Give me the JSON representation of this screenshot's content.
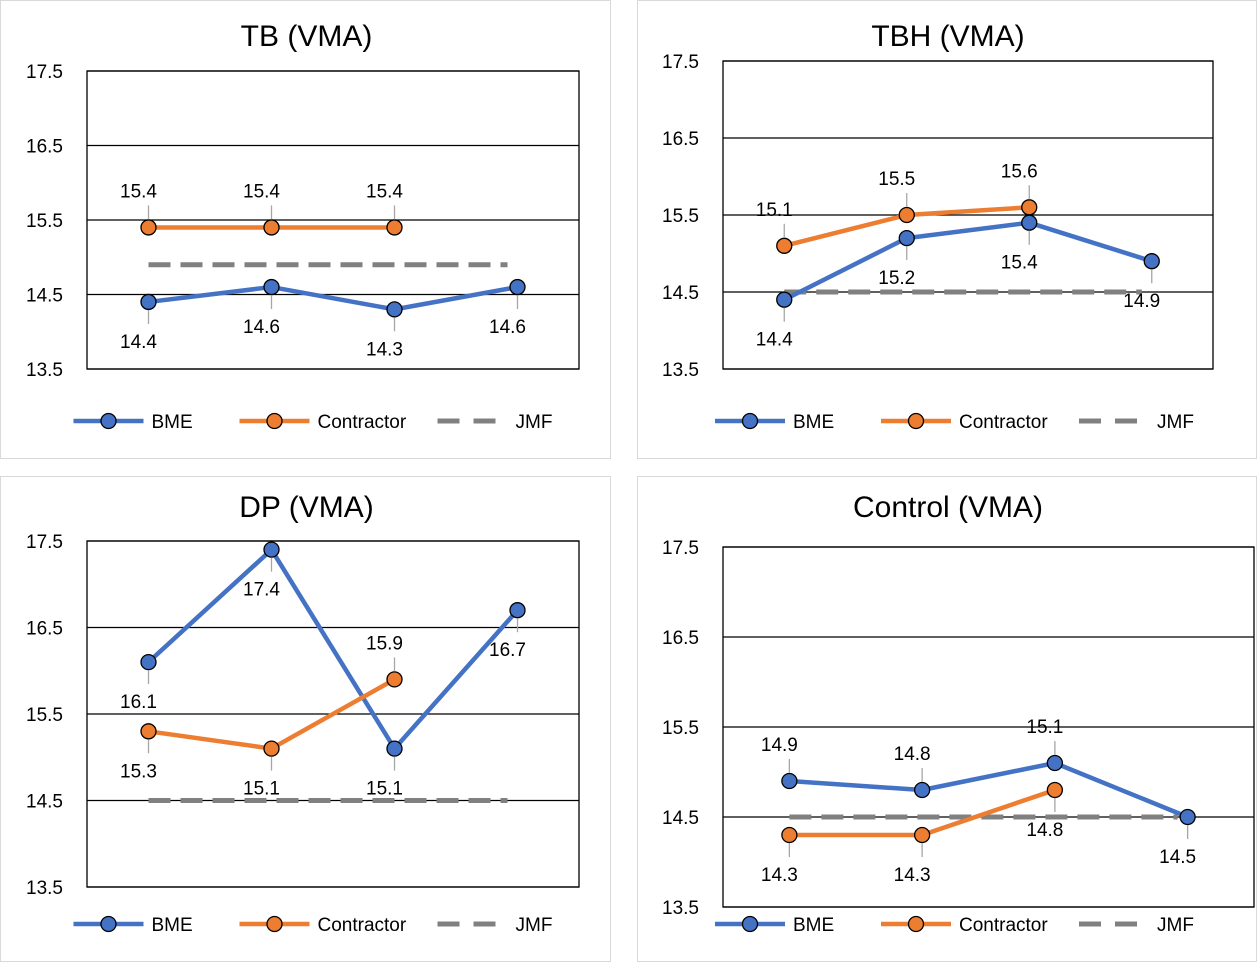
{
  "colors": {
    "bme": "#4472C4",
    "contractor": "#ED7D31",
    "jmf": "#808080",
    "leader": "#a6a6a6"
  },
  "legend": [
    "BME",
    "Contractor",
    "JMF"
  ],
  "chart_data": [
    {
      "type": "line",
      "title": "TB (VMA)",
      "yticks": [
        "17.5",
        "16.5",
        "15.5",
        "14.5",
        "13.5"
      ],
      "ylim": [
        13.5,
        17.5
      ],
      "grid": true,
      "legend_position": "bottom",
      "series": [
        {
          "name": "BME",
          "values": [
            14.4,
            14.6,
            14.3,
            14.6
          ],
          "labels": [
            "14.4",
            "14.6",
            "14.3",
            "14.6"
          ],
          "label_pos": [
            "below",
            "below",
            "below",
            "below"
          ]
        },
        {
          "name": "Contractor",
          "values": [
            15.4,
            15.4,
            15.4
          ],
          "labels": [
            "15.4",
            "15.4",
            "15.4"
          ],
          "label_pos": [
            "above",
            "above",
            "above"
          ]
        },
        {
          "name": "JMF",
          "values": [
            14.9,
            14.9,
            14.9,
            14.9
          ]
        }
      ]
    },
    {
      "type": "line",
      "title": "TBH (VMA)",
      "yticks": [
        "17.5",
        "16.5",
        "15.5",
        "14.5",
        "13.5"
      ],
      "ylim": [
        13.5,
        17.5
      ],
      "grid": true,
      "legend_position": "bottom",
      "series": [
        {
          "name": "BME",
          "values": [
            14.4,
            15.2,
            15.4,
            14.9
          ],
          "labels": [
            "14.4",
            "15.2",
            "15.4",
            "14.9"
          ],
          "label_pos": [
            "below",
            "below",
            "below",
            "below"
          ]
        },
        {
          "name": "Contractor",
          "values": [
            15.1,
            15.5,
            15.6
          ],
          "labels": [
            "15.1",
            "15.5",
            "15.6"
          ],
          "label_pos": [
            "above",
            "above",
            "above"
          ]
        },
        {
          "name": "JMF",
          "values": [
            14.5,
            14.5,
            14.5,
            14.5
          ]
        }
      ]
    },
    {
      "type": "line",
      "title": "DP (VMA)",
      "yticks": [
        "17.5",
        "16.5",
        "15.5",
        "14.5",
        "13.5"
      ],
      "ylim": [
        13.5,
        17.5
      ],
      "grid": true,
      "legend_position": "bottom",
      "series": [
        {
          "name": "BME",
          "values": [
            16.1,
            17.4,
            15.1,
            16.7
          ],
          "labels": [
            "16.1",
            "17.4",
            "15.1",
            "16.7"
          ],
          "label_pos": [
            "below",
            "below",
            "below",
            "below"
          ]
        },
        {
          "name": "Contractor",
          "values": [
            15.3,
            15.1,
            15.9
          ],
          "labels": [
            "15.3",
            "15.1",
            "15.9"
          ],
          "label_pos": [
            "below",
            "below",
            "above"
          ]
        },
        {
          "name": "JMF",
          "values": [
            14.5,
            14.5,
            14.5,
            14.5
          ]
        }
      ]
    },
    {
      "type": "line",
      "title": "Control (VMA)",
      "yticks": [
        "17.5",
        "16.5",
        "15.5",
        "14.5",
        "13.5"
      ],
      "ylim": [
        13.5,
        17.5
      ],
      "grid": true,
      "legend_position": "bottom",
      "series": [
        {
          "name": "BME",
          "values": [
            14.9,
            14.8,
            15.1,
            14.5
          ],
          "labels": [
            "14.9",
            "14.8",
            "15.1",
            "14.5"
          ],
          "label_pos": [
            "above",
            "above",
            "above",
            "below"
          ]
        },
        {
          "name": "Contractor",
          "values": [
            14.3,
            14.3,
            14.8
          ],
          "labels": [
            "14.3",
            "14.3",
            "14.8"
          ],
          "label_pos": [
            "below",
            "below",
            "below"
          ]
        },
        {
          "name": "JMF",
          "values": [
            14.5,
            14.5,
            14.5,
            14.5
          ]
        }
      ]
    }
  ]
}
